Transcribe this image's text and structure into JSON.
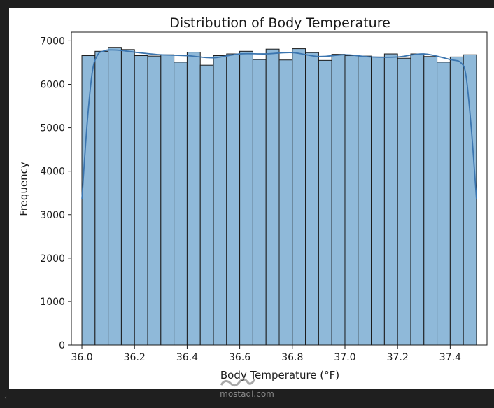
{
  "chart_data": {
    "type": "bar",
    "title": "Distribution of Body Temperature",
    "xlabel": "Body Temperature (°F)",
    "ylabel": "Frequency",
    "xlim": [
      35.96,
      37.54
    ],
    "ylim": [
      0,
      7200
    ],
    "x_ticks": [
      "36.0",
      "36.2",
      "36.4",
      "36.6",
      "36.8",
      "37.0",
      "37.2",
      "37.4"
    ],
    "x_tick_values": [
      36.0,
      36.2,
      36.4,
      36.6,
      36.8,
      37.0,
      37.2,
      37.4
    ],
    "y_ticks": [
      "0",
      "1000",
      "2000",
      "3000",
      "4000",
      "5000",
      "6000",
      "7000"
    ],
    "y_tick_values": [
      0,
      1000,
      2000,
      3000,
      4000,
      5000,
      6000,
      7000
    ],
    "grid": false,
    "bin_start": 36.0,
    "bin_end": 37.5,
    "values": [
      6660,
      6760,
      6850,
      6800,
      6660,
      6650,
      6680,
      6510,
      6740,
      6440,
      6660,
      6700,
      6760,
      6570,
      6810,
      6560,
      6820,
      6730,
      6550,
      6690,
      6660,
      6650,
      6630,
      6700,
      6600,
      6700,
      6640,
      6510,
      6630,
      6680
    ],
    "kde": {
      "x": [
        36.0,
        36.02,
        36.04,
        36.06,
        36.08,
        36.1,
        36.15,
        36.2,
        36.3,
        36.4,
        36.5,
        36.6,
        36.7,
        36.8,
        36.9,
        37.0,
        37.1,
        37.2,
        37.3,
        37.4,
        37.44,
        37.46,
        37.48,
        37.5
      ],
      "y": [
        3350,
        5100,
        6300,
        6680,
        6760,
        6790,
        6780,
        6740,
        6680,
        6660,
        6610,
        6700,
        6700,
        6730,
        6640,
        6680,
        6630,
        6630,
        6700,
        6570,
        6500,
        6200,
        5000,
        3350
      ]
    },
    "bar_color": "#8fb9d9",
    "bar_edge": "#1a1a1a",
    "kde_color": "#3b75af"
  },
  "watermark": "mostaql.com",
  "scroll_arrow": "‹"
}
